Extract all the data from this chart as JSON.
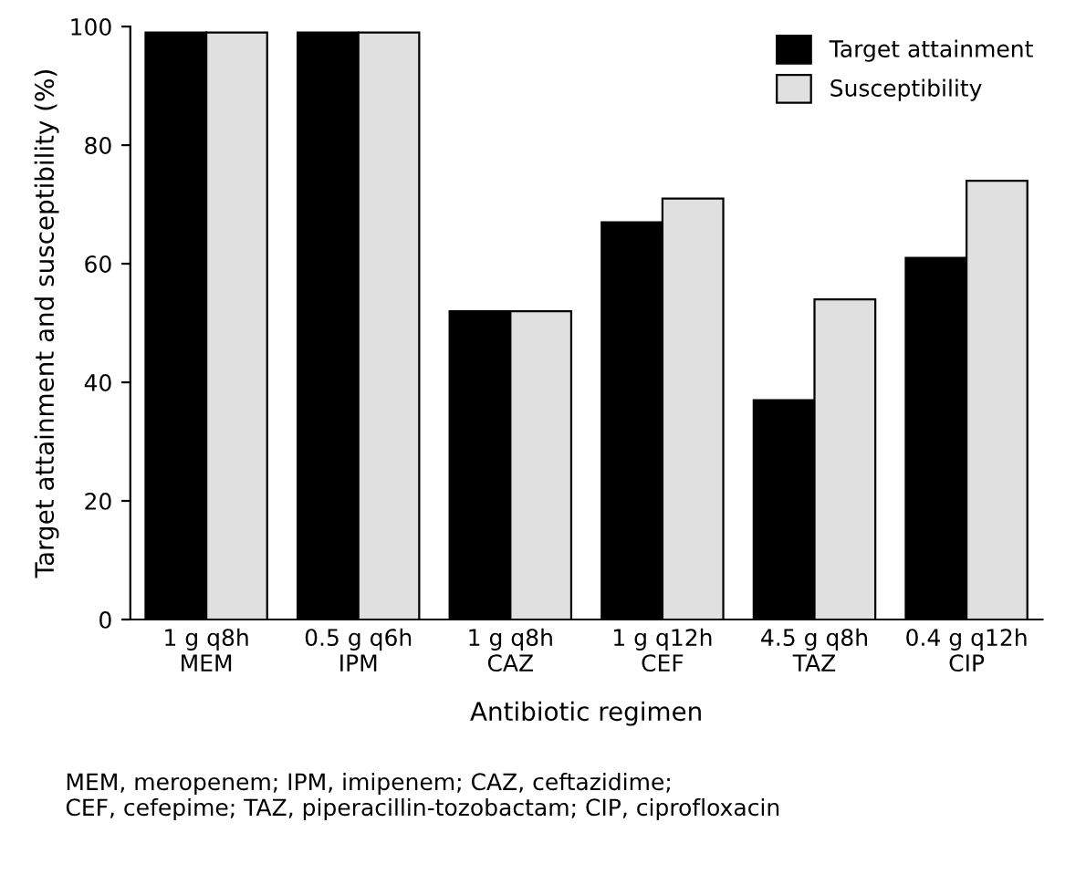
{
  "chart_data": {
    "type": "bar",
    "xlabel": "Antibiotic regimen",
    "ylabel": "Target attainment and susceptibility (%)",
    "categories": [
      "1 g q8h\nMEM",
      "0.5 g q6h\nIPM",
      "1 g q8h\nCAZ",
      "1 g q12h\nCEF",
      "4.5 g q8h\nTAZ",
      "0.4 g q12h\nCIP"
    ],
    "series": [
      {
        "name": "Target attainment",
        "color": "#000000",
        "values": [
          99,
          99,
          52,
          67,
          37,
          61
        ]
      },
      {
        "name": "Susceptibility",
        "color": "#e0e0e0",
        "values": [
          99,
          99,
          52,
          71,
          54,
          74
        ]
      }
    ],
    "ylim": [
      0,
      100
    ],
    "yticks": [
      0,
      20,
      40,
      60,
      80,
      100
    ],
    "grid": false,
    "legend": "top right",
    "annotations": [
      "MEM, meropenem; IPM, imipenem; CAZ, ceftazidime;\nCEF, cefepime; TAZ, piperacillin-tozobactam; CIP, ciprofloxacin"
    ]
  }
}
